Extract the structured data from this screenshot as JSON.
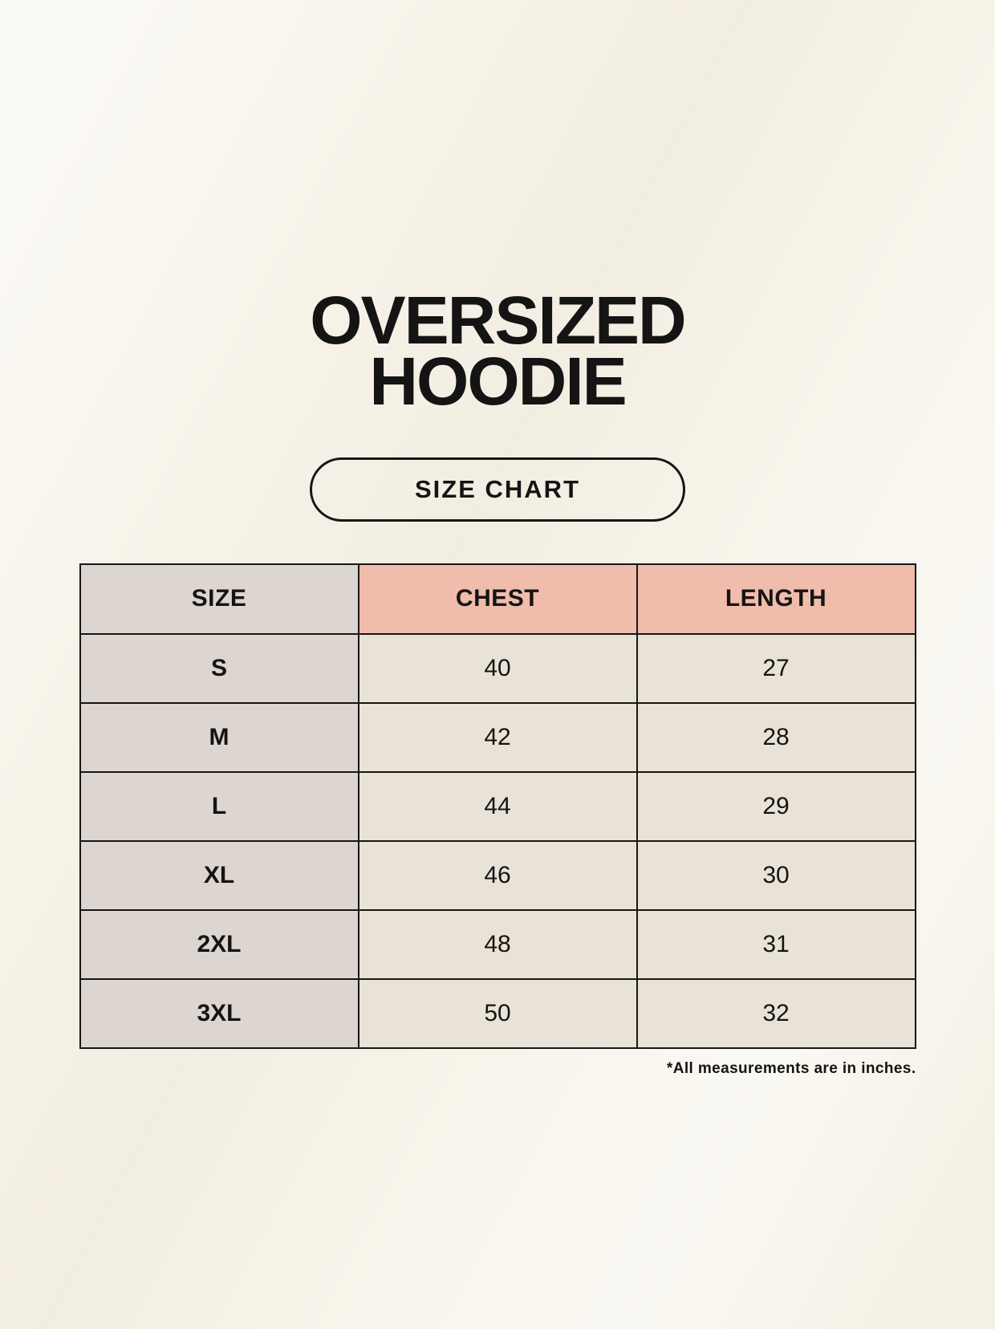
{
  "header": {
    "title_line1": "OVERSIZED",
    "title_line2": "HOODIE",
    "size_chart_button_label": "SIZE CHART"
  },
  "chart_data": {
    "type": "table",
    "title": "OVERSIZED HOODIE",
    "subtitle": "SIZE CHART",
    "columns": [
      "SIZE",
      "CHEST",
      "LENGTH"
    ],
    "rows": [
      [
        "S",
        40,
        27
      ],
      [
        "M",
        42,
        28
      ],
      [
        "L",
        44,
        29
      ],
      [
        "XL",
        46,
        30
      ],
      [
        "2XL",
        48,
        31
      ],
      [
        "3XL",
        50,
        32
      ]
    ],
    "units_note": "*All measurements are in inches.",
    "units": "inches"
  },
  "colors": {
    "background": "#f7f3e9",
    "header_accent_pink": "#f0bcab",
    "size_column_taupe": "#dcd5d0",
    "data_cell_beige": "#e9e2d6",
    "border": "#161616",
    "text": "#141414"
  }
}
